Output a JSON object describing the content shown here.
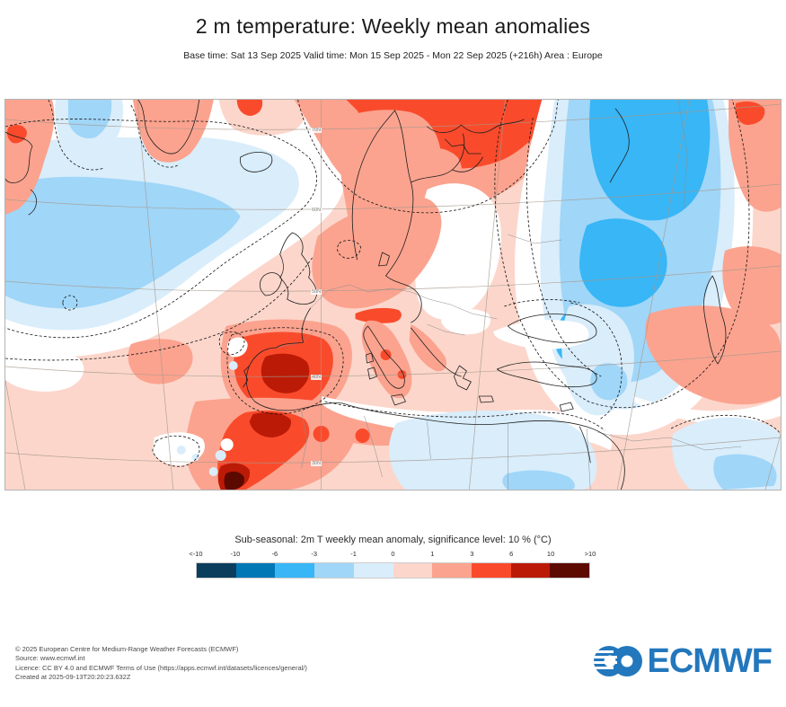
{
  "header": {
    "title": "2 m temperature: Weekly mean anomalies",
    "subtitle": "Base time: Sat 13 Sep 2025 Valid time: Mon 15 Sep 2025 - Mon 22 Sep 2025 (+216h) Area : Europe"
  },
  "map": {
    "graticule_labels": [
      "70N",
      "60N",
      "50N",
      "40N",
      "30N"
    ]
  },
  "legend": {
    "caption": "Sub-seasonal: 2m T weekly mean anomaly, significance level: 10 % (°C)",
    "ticks": [
      "<-10",
      "-10",
      "-6",
      "-3",
      "-1",
      "0",
      "1",
      "3",
      "6",
      "10",
      ">10"
    ],
    "colors": [
      "#0b3d5c",
      "#0277b5",
      "#38b6f6",
      "#a0d6f8",
      "#d9edfb",
      "#fcd6cb",
      "#fba38f",
      "#f94b2c",
      "#bb1a07",
      "#5c0a00"
    ]
  },
  "footer": {
    "lines": [
      "© 2025 European Centre for Medium-Range Weather Forecasts (ECMWF)",
      "Source: www.ecmwf.int",
      "Licence: CC BY 4.0 and ECMWF Terms of Use (https://apps.ecmwf.int/datasets/licences/general/)",
      "Created at 2025-09-13T20:20:23.632Z"
    ]
  },
  "logo": {
    "text": "ECMWF",
    "color": "#2277bd"
  }
}
